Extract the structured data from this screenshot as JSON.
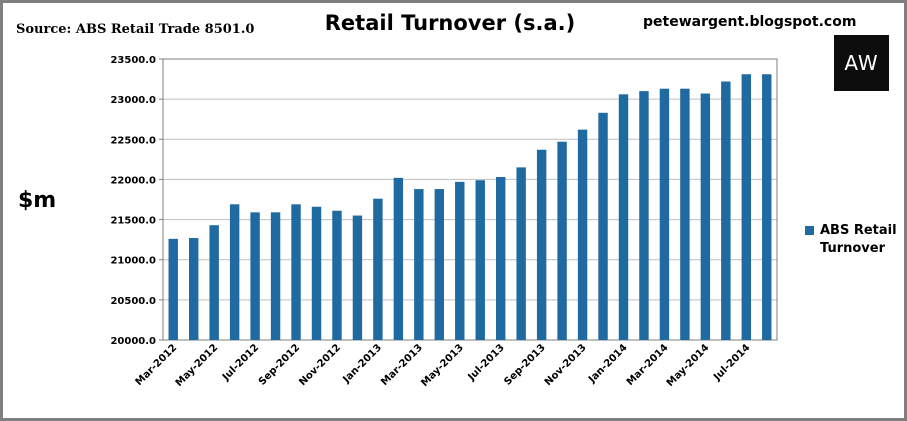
{
  "source": "Source: ABS Retail Trade 8501.0",
  "title": "Retail Turnover (s.a.)",
  "blog": "petewargent.blogspot.com",
  "logo_text": "AW",
  "unit_label": "$m",
  "legend_label": "ABS Retail Turnover",
  "colors": {
    "bar": "#1f6aa0",
    "grid": "#bfbfbf",
    "axis": "#7f7f7f",
    "frame": "#7f7f7f"
  },
  "chart_data": {
    "type": "bar",
    "title": "Retail Turnover (s.a.)",
    "ylabel": "$m",
    "xlabel": "",
    "ylim": [
      20000,
      23500
    ],
    "yticks": [
      "20000.0",
      "20500.0",
      "21000.0",
      "21500.0",
      "22000.0",
      "22500.0",
      "23000.0",
      "23500.0"
    ],
    "grid": true,
    "legend_position": "right",
    "categories": [
      "Mar-2012",
      "Apr-2012",
      "May-2012",
      "Jun-2012",
      "Jul-2012",
      "Aug-2012",
      "Sep-2012",
      "Oct-2012",
      "Nov-2012",
      "Dec-2012",
      "Jan-2013",
      "Feb-2013",
      "Mar-2013",
      "Apr-2013",
      "May-2013",
      "Jun-2013",
      "Jul-2013",
      "Aug-2013",
      "Sep-2013",
      "Oct-2013",
      "Nov-2013",
      "Dec-2013",
      "Jan-2014",
      "Feb-2014",
      "Mar-2014",
      "Apr-2014",
      "May-2014",
      "Jun-2014",
      "Jul-2014",
      "Aug-2014"
    ],
    "tick_labels": [
      "Mar-2012",
      "May-2012",
      "Jul-2012",
      "Sep-2012",
      "Nov-2012",
      "Jan-2013",
      "Mar-2013",
      "May-2013",
      "Jul-2013",
      "Sep-2013",
      "Nov-2013",
      "Jan-2014",
      "Mar-2014",
      "May-2014",
      "Jul-2014"
    ],
    "series": [
      {
        "name": "ABS Retail Turnover",
        "values": [
          21260,
          21270,
          21430,
          21690,
          21590,
          21590,
          21690,
          21660,
          21610,
          21550,
          21760,
          22020,
          21880,
          21880,
          21970,
          21990,
          22030,
          22150,
          22370,
          22470,
          22620,
          22830,
          23060,
          23100,
          23130,
          23130,
          23070,
          23220,
          23310,
          23310
        ]
      }
    ]
  }
}
